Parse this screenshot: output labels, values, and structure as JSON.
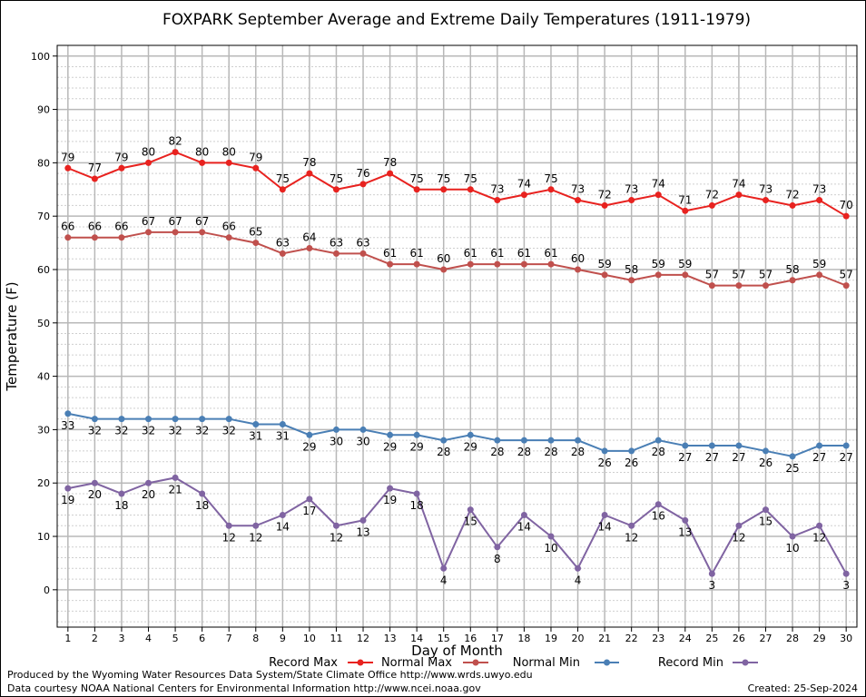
{
  "chart_data": {
    "type": "line",
    "title": "FOXPARK September Average and Extreme Daily Temperatures (1911-1979)",
    "xlabel": "Day of Month",
    "ylabel": "Temperature (F)",
    "x": [
      1,
      2,
      3,
      4,
      5,
      6,
      7,
      8,
      9,
      10,
      11,
      12,
      13,
      14,
      15,
      16,
      17,
      18,
      19,
      20,
      21,
      22,
      23,
      24,
      25,
      26,
      27,
      28,
      29,
      30
    ],
    "xlim": [
      0.6,
      30.4
    ],
    "ylim": [
      -7,
      102
    ],
    "yticks": [
      0,
      10,
      20,
      30,
      40,
      50,
      60,
      70,
      80,
      90,
      100
    ],
    "grid": true,
    "legend_position": "bottom",
    "series": [
      {
        "name": "Record Max",
        "color": "#e8221f",
        "values": [
          79,
          77,
          79,
          80,
          82,
          80,
          80,
          79,
          75,
          78,
          75,
          76,
          78,
          75,
          75,
          75,
          73,
          74,
          75,
          73,
          72,
          73,
          74,
          71,
          72,
          74,
          73,
          72,
          73,
          70
        ],
        "label_position": "above"
      },
      {
        "name": "Normal Max",
        "color": "#c0504d",
        "values": [
          66,
          66,
          66,
          67,
          67,
          67,
          66,
          65,
          63,
          64,
          63,
          63,
          61,
          61,
          60,
          61,
          61,
          61,
          61,
          60,
          59,
          58,
          59,
          59,
          57,
          57,
          57,
          58,
          59,
          57
        ],
        "label_position": "above"
      },
      {
        "name": "Normal Min",
        "color": "#4a7fb5",
        "values": [
          33,
          32,
          32,
          32,
          32,
          32,
          32,
          31,
          31,
          29,
          30,
          30,
          29,
          29,
          28,
          29,
          28,
          28,
          28,
          28,
          26,
          26,
          28,
          27,
          27,
          27,
          26,
          25,
          27,
          27
        ],
        "label_position": "below"
      },
      {
        "name": "Record Min",
        "color": "#8064a2",
        "values": [
          19,
          20,
          18,
          20,
          21,
          18,
          12,
          12,
          14,
          17,
          12,
          13,
          19,
          18,
          4,
          15,
          8,
          14,
          10,
          4,
          14,
          12,
          16,
          13,
          3,
          12,
          15,
          10,
          12,
          3
        ],
        "label_position": "below"
      }
    ]
  },
  "footer": {
    "credit_line1": "Produced by the Wyoming Water Resources Data System/State Climate Office http://www.wrds.uwyo.edu",
    "credit_line2": "Data courtesy NOAA National Centers for Environmental Information http://www.ncei.noaa.gov",
    "created": "Created:  25-Sep-2024"
  }
}
